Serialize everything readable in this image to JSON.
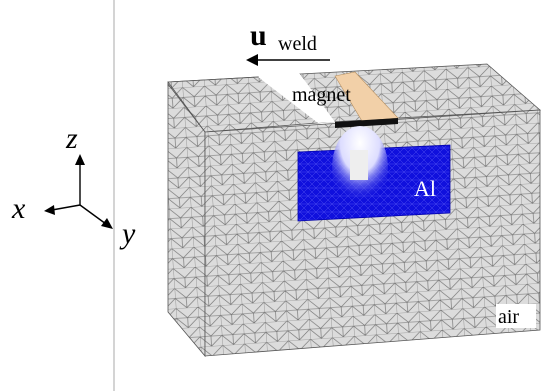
{
  "weld_arrow": {
    "symbol": "u",
    "subscript": "weld"
  },
  "labels": {
    "magnet": "magnet",
    "aluminium": "Al",
    "air": "air"
  },
  "axes": {
    "x": "x",
    "y": "y",
    "z": "z"
  }
}
